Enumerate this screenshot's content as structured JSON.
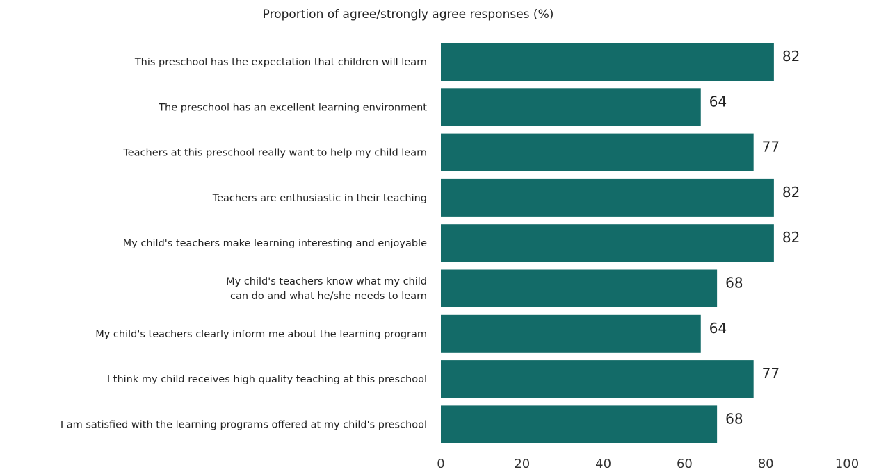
{
  "chart_data": {
    "type": "bar",
    "orientation": "horizontal",
    "title": "Proportion of agree/strongly agree responses (%)",
    "xlabel": "",
    "ylabel": "",
    "xlim": [
      0,
      100
    ],
    "xticks": [
      0,
      20,
      40,
      60,
      80,
      100
    ],
    "grid": false,
    "legend": "none",
    "bar_color": "#136b68",
    "categories": [
      [
        "This preschool has the expectation that children will learn"
      ],
      [
        "The preschool has an excellent learning environment"
      ],
      [
        "Teachers at this preschool really want to help my child learn"
      ],
      [
        "Teachers are enthusiastic in their teaching"
      ],
      [
        "My child's teachers make learning interesting and enjoyable"
      ],
      [
        "My child's teachers know what my child",
        "can do and what he/she needs to learn"
      ],
      [
        "My child's teachers clearly inform me about the learning program"
      ],
      [
        "I think my child receives high quality teaching at this preschool"
      ],
      [
        "I am satisfied with the learning programs offered at my child's preschool"
      ]
    ],
    "values": [
      82,
      64,
      77,
      82,
      82,
      68,
      64,
      77,
      68
    ]
  }
}
